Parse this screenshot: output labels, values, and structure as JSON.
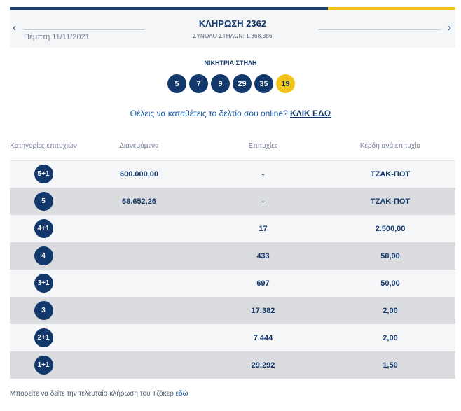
{
  "draw": {
    "title": "ΚΛΗΡΩΣΗ 2362",
    "date": "Πέμπτη 11/11/2021",
    "total_columns": "ΣΥΝΟΛΟ ΣΤΗΛΩΝ: 1.868.386",
    "prev_arrow": "‹",
    "next_arrow": "›"
  },
  "winning": {
    "label": "ΝΙΚΗΤΡΙΑ ΣΤΗΛΗ",
    "numbers": [
      "5",
      "7",
      "9",
      "29",
      "35"
    ],
    "joker": "19"
  },
  "cta": {
    "text": "Θέλεις να καταθέτεις το δελτίο σου online?",
    "link": "ΚΛΙΚ ΕΔΩ"
  },
  "table": {
    "headers": {
      "category": "Κατηγορίες επιτυχιών",
      "distributed": "Διανεμόμενα",
      "winners": "Επιτυχίες",
      "prize": "Κέρδη ανά επιτυχία"
    },
    "rows": [
      {
        "category": "5+1",
        "distributed": "600.000,00",
        "winners": "-",
        "prize": "ΤΖΑΚ-ΠΟΤ"
      },
      {
        "category": "5",
        "distributed": "68.652,26",
        "winners": "-",
        "prize": "ΤΖΑΚ-ΠΟΤ"
      },
      {
        "category": "4+1",
        "distributed": "",
        "winners": "17",
        "prize": "2.500,00"
      },
      {
        "category": "4",
        "distributed": "",
        "winners": "433",
        "prize": "50,00"
      },
      {
        "category": "3+1",
        "distributed": "",
        "winners": "697",
        "prize": "50,00"
      },
      {
        "category": "3",
        "distributed": "",
        "winners": "17.382",
        "prize": "2,00"
      },
      {
        "category": "2+1",
        "distributed": "",
        "winners": "7.444",
        "prize": "2,00"
      },
      {
        "category": "1+1",
        "distributed": "",
        "winners": "29.292",
        "prize": "1,50"
      }
    ]
  },
  "footer": {
    "text": "Μπορείτε να δείτε την τελευταία κλήρωση του Τζόκερ",
    "link": "εδώ"
  },
  "colors": {
    "navy": "#13386b",
    "joker_yellow": "#f2c31b",
    "row_light": "#f5f6f8",
    "row_dark": "#dadce0"
  }
}
